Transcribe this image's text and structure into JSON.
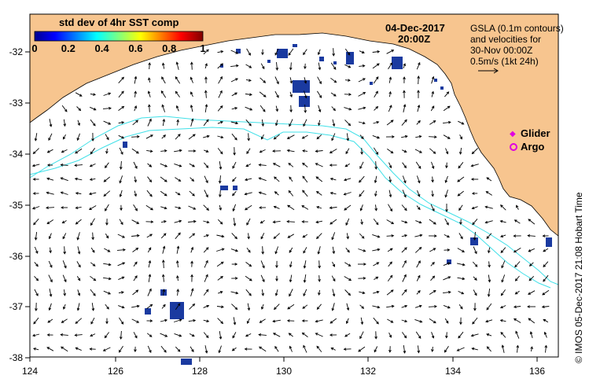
{
  "map": {
    "date": "04-Dec-2017",
    "time": "20:00Z",
    "colorbar": {
      "title": "std dev of 4hr SST comp",
      "ticks": [
        "0",
        "0.2",
        "0.4",
        "0.6",
        "0.8",
        "1"
      ]
    },
    "info": {
      "line1": "GSLA (0.1m contours)",
      "line2": "and velocities for",
      "line3": "30-Nov 00:00Z",
      "line4": "0.5m/s (1kt 24h)"
    },
    "legend": {
      "glider": "Glider",
      "argo": "Argo",
      "glider_color": "#e000e0",
      "argo_color": "#e000e0"
    },
    "credit": "© IMOS 05-Dec-2017 21:08 Hobart Time",
    "x_ticks": [
      "124",
      "126",
      "128",
      "130",
      "132",
      "134",
      "136"
    ],
    "y_ticks": [
      "-32",
      "-33",
      "-34",
      "-35",
      "-36",
      "-37",
      "-38"
    ],
    "colors": {
      "land": "#f7c58f",
      "contour": "#40e0e8",
      "sst_patch": "#1a3aa0",
      "vector": "#000000"
    }
  }
}
